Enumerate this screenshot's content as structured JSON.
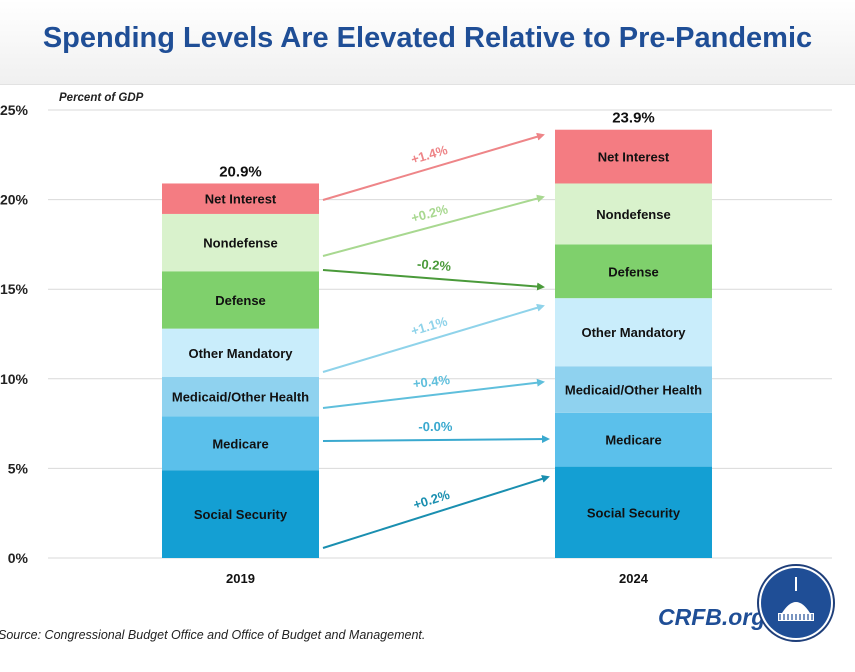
{
  "title": "Spending Levels Are Elevated Relative to Pre-Pandemic",
  "source": "Source: Congressional Budget Office and Office of Budget and Management.",
  "brand": "CRFB.org",
  "chart_data": {
    "type": "bar",
    "stacked": true,
    "ylabel": "Percent of GDP",
    "ylim": [
      0,
      25
    ],
    "yticks": [
      "0%",
      "5%",
      "10%",
      "15%",
      "20%",
      "25%"
    ],
    "grid": true,
    "categories": [
      "2019",
      "2024"
    ],
    "totals": [
      "20.9%",
      "23.9%"
    ],
    "series": [
      {
        "name": "Social Security",
        "values": [
          4.9,
          5.1
        ],
        "color": "#149fd3",
        "arrow_color": "#1a8fb0",
        "change": "+0.2%"
      },
      {
        "name": "Medicare",
        "values": [
          3.0,
          3.0
        ],
        "color": "#5bc0eb",
        "arrow_color": "#3aa9cf",
        "change": "-0.0%"
      },
      {
        "name": "Medicaid/Other Health",
        "values": [
          2.2,
          2.6
        ],
        "color": "#8fd2ef",
        "arrow_color": "#5fbfdc",
        "change": "+0.4%"
      },
      {
        "name": "Other Mandatory",
        "values": [
          2.7,
          3.8
        ],
        "color": "#c9edfb",
        "arrow_color": "#8fd3ea",
        "change": "+1.1%"
      },
      {
        "name": "Defense",
        "values": [
          3.2,
          3.0
        ],
        "color": "#7fd06c",
        "arrow_color": "#4a9a3a",
        "change": "-0.2%"
      },
      {
        "name": "Nondefense",
        "values": [
          3.2,
          3.4
        ],
        "color": "#d9f2cc",
        "arrow_color": "#a8d890",
        "change": "+0.2%"
      },
      {
        "name": "Net Interest",
        "values": [
          1.7,
          3.0
        ],
        "color": "#f47c82",
        "arrow_color": "#ee8588",
        "change": "+1.4%"
      }
    ]
  }
}
